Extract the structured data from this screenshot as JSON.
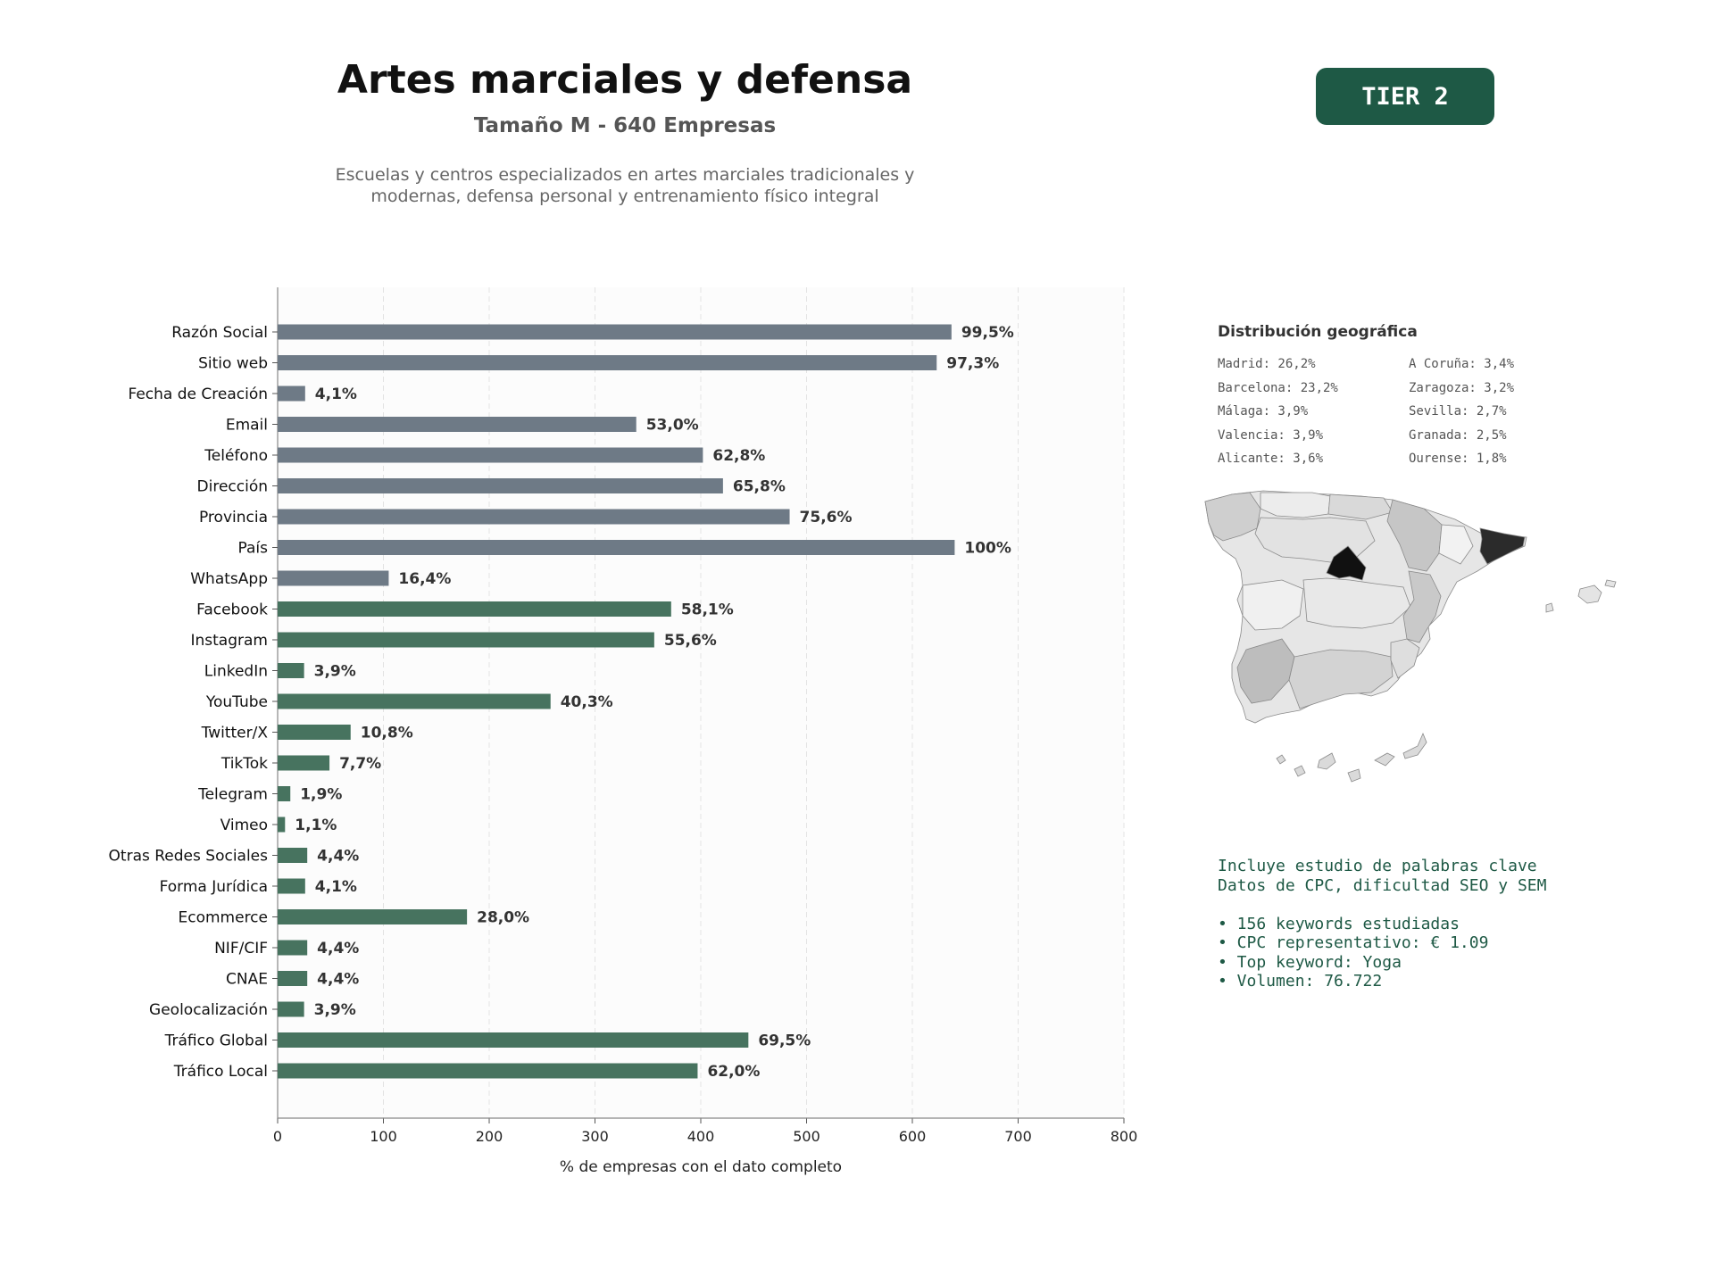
{
  "header": {
    "title": "Artes marciales y defensa",
    "subtitle": "Tamaño M - 640 Empresas",
    "description_line1": "Escuelas y centros especializados en artes marciales tradicionales y",
    "description_line2": "modernas, defensa personal y entrenamiento físico integral",
    "tier_label": "TIER 2"
  },
  "chart_data": {
    "type": "bar",
    "orientation": "horizontal",
    "xlabel": "% de empresas con el dato completo",
    "xlim": [
      0,
      800
    ],
    "xticks": [
      0,
      100,
      200,
      300,
      400,
      500,
      600,
      700,
      800
    ],
    "grid": "vertical dashed",
    "colors": {
      "base": "#6e7a86",
      "digital": "#47735f"
    },
    "categories": [
      "Razón Social",
      "Sitio web",
      "Fecha de Creación",
      "Email",
      "Teléfono",
      "Dirección",
      "Provincia",
      "País",
      "WhatsApp",
      "Facebook",
      "Instagram",
      "LinkedIn",
      "YouTube",
      "Twitter/X",
      "TikTok",
      "Telegram",
      "Vimeo",
      "Otras Redes Sociales",
      "Forma Jurídica",
      "Ecommerce",
      "NIF/CIF",
      "CNAE",
      "Geolocalización",
      "Tráfico Global",
      "Tráfico Local"
    ],
    "values": [
      637,
      623,
      26,
      339,
      402,
      421,
      484,
      640,
      105,
      372,
      356,
      25,
      258,
      69,
      49,
      12,
      7,
      28,
      26,
      179,
      28,
      28,
      25,
      445,
      397
    ],
    "labels": [
      "99,5%",
      "97,3%",
      "4,1%",
      "53,0%",
      "62,8%",
      "65,8%",
      "75,6%",
      "100%",
      "16,4%",
      "58,1%",
      "55,6%",
      "3,9%",
      "40,3%",
      "10,8%",
      "7,7%",
      "1,9%",
      "1,1%",
      "4,4%",
      "4,1%",
      "28,0%",
      "4,4%",
      "4,4%",
      "3,9%",
      "69,5%",
      "62,0%"
    ],
    "groups": [
      "base",
      "base",
      "base",
      "base",
      "base",
      "base",
      "base",
      "base",
      "base",
      "digital",
      "digital",
      "digital",
      "digital",
      "digital",
      "digital",
      "digital",
      "digital",
      "digital",
      "digital",
      "digital",
      "digital",
      "digital",
      "digital",
      "digital",
      "digital"
    ]
  },
  "geo": {
    "title": "Distribución geográfica",
    "items": [
      "Madrid: 26,2%",
      "A Coruña: 3,4%",
      "Barcelona: 23,2%",
      "Zaragoza: 3,2%",
      "Málaga: 3,9%",
      "Sevilla: 2,7%",
      "Valencia: 3,9%",
      "Granada: 2,5%",
      "Alicante: 3,6%",
      "Ourense: 1,8%"
    ]
  },
  "keywords": {
    "line1": "Incluye estudio de palabras clave",
    "line2": "Datos de CPC, dificultad SEO y SEM",
    "bullet1": "• 156 keywords estudiadas",
    "bullet2": "• CPC representativo: € 1.09",
    "bullet3": "• Top keyword: Yoga",
    "bullet4": "• Volumen: 76.722"
  }
}
